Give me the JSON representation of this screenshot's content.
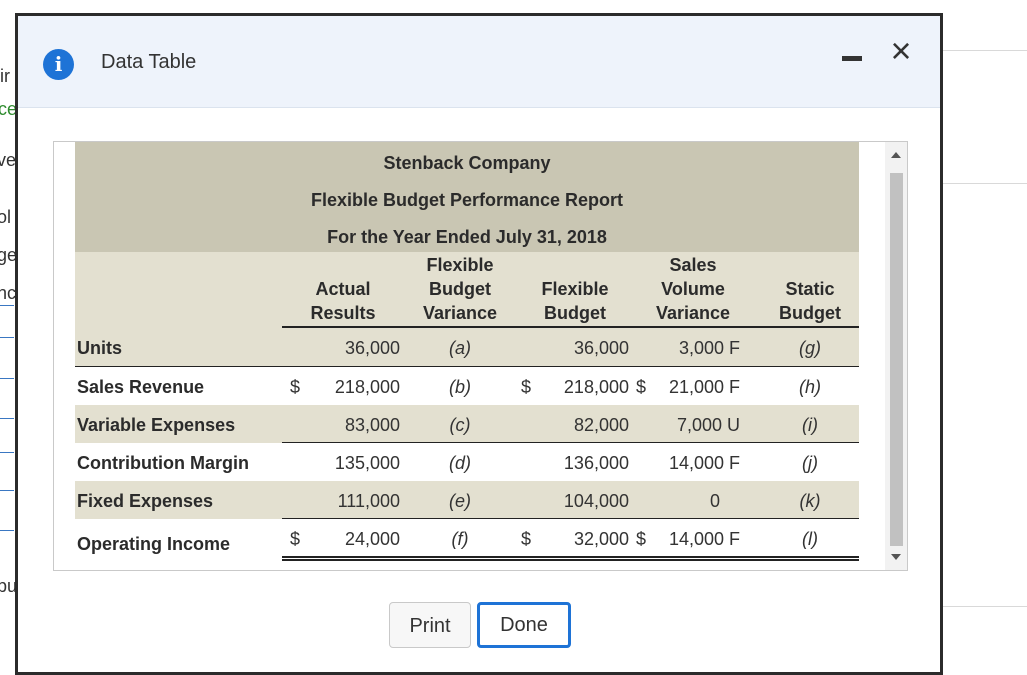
{
  "background": {
    "fragments": [
      "ir",
      "ce",
      "ve",
      "ol",
      "ge",
      "nc",
      "pu"
    ]
  },
  "dialog": {
    "title": "Data Table",
    "info_icon": "i",
    "minimize_icon": "minimize-icon",
    "close_icon": "×"
  },
  "report": {
    "company": "Stenback Company",
    "name": "Flexible Budget Performance Report",
    "period": "For the Year Ended July 31, 2018",
    "columns": {
      "actual": [
        "Actual",
        "Results"
      ],
      "fbv": [
        "Flexible",
        "Budget",
        "Variance"
      ],
      "flex": [
        "Flexible",
        "Budget"
      ],
      "svv": [
        "Sales",
        "Volume",
        "Variance"
      ],
      "static": [
        "Static",
        "Budget"
      ]
    },
    "rows": [
      {
        "label": "Units",
        "actual_sign": "",
        "actual": "36,000",
        "fbv": "(a)",
        "flex_sign": "",
        "flex": "36,000",
        "svv_sign": "",
        "svv": "3,000 F",
        "static": "(g)"
      },
      {
        "label": "Sales Revenue",
        "actual_sign": "$",
        "actual": "218,000",
        "fbv": "(b)",
        "flex_sign": "$",
        "flex": "218,000",
        "svv_sign": "$",
        "svv": "21,000 F",
        "static": "(h)"
      },
      {
        "label": "Variable Expenses",
        "actual_sign": "",
        "actual": "83,000",
        "fbv": "(c)",
        "flex_sign": "",
        "flex": "82,000",
        "svv_sign": "",
        "svv": "7,000 U",
        "static": "(i)"
      },
      {
        "label": "Contribution Margin",
        "actual_sign": "",
        "actual": "135,000",
        "fbv": "(d)",
        "flex_sign": "",
        "flex": "136,000",
        "svv_sign": "",
        "svv": "14,000 F",
        "static": "(j)"
      },
      {
        "label": "Fixed Expenses",
        "actual_sign": "",
        "actual": "111,000",
        "fbv": "(e)",
        "flex_sign": "",
        "flex": "104,000",
        "svv_sign": "",
        "svv": "0",
        "static": "(k)"
      },
      {
        "label": "Operating Income",
        "actual_sign": "$",
        "actual": "24,000",
        "fbv": "(f)",
        "flex_sign": "$",
        "flex": "32,000",
        "svv_sign": "$",
        "svv": "14,000 F",
        "static": "(l)"
      }
    ]
  },
  "buttons": {
    "print": "Print",
    "done": "Done"
  },
  "colors": {
    "header_band": "#c9c6b3",
    "row_shade": "#e3e0d0",
    "accent": "#1e73d6"
  }
}
